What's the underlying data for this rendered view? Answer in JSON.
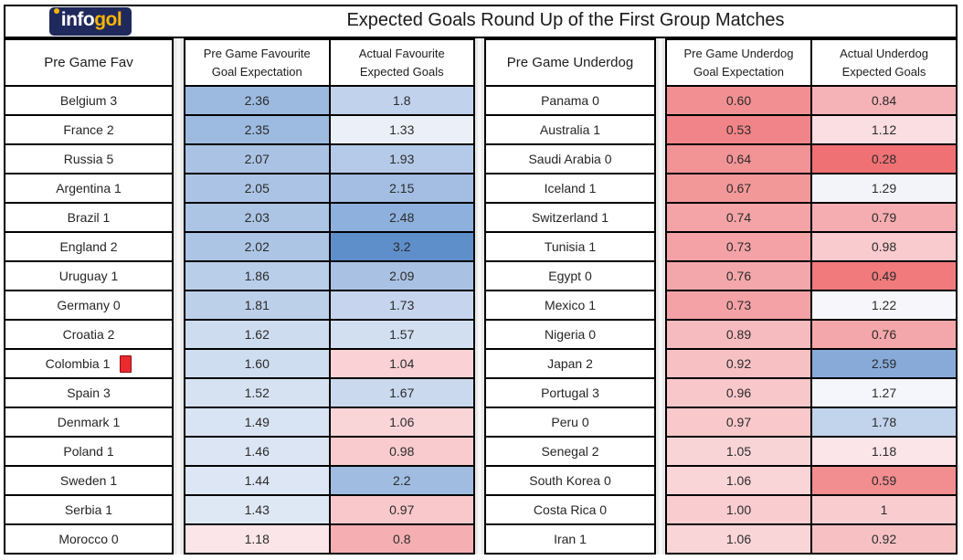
{
  "title": "Expected Goals Round Up of the First Group Matches",
  "logo": {
    "info": "info",
    "gol": "gol"
  },
  "headers": {
    "fav_team": "Pre Game Fav",
    "fav_pre_l1": "Pre Game Favourite",
    "fav_pre_l2": "Goal Expectation",
    "fav_xg_l1": "Actual Favourite",
    "fav_xg_l2": "Expected Goals",
    "dog_team": "Pre Game Underdog",
    "dog_pre_l1": "Pre Game Underdog",
    "dog_pre_l2": "Goal Expectation",
    "dog_xg_l1": "Actual Underdog",
    "dog_xg_l2": "Expected Goals"
  },
  "chart_data": {
    "type": "heatmap",
    "title": "Expected Goals Round Up of the First Group Matches",
    "columns": [
      "Pre Game Fav",
      "Pre Game Favourite Goal Expectation",
      "Actual Favourite Expected Goals",
      "Pre Game Underdog",
      "Pre Game Underdog Goal Expectation",
      "Actual Underdog Expected Goals"
    ],
    "color_scale": {
      "low_value": 0.28,
      "high_value": 3.2,
      "low_color": "#F8696B",
      "mid_color": "#FCFCFF",
      "high_color": "#5A8AC6"
    },
    "rows": [
      {
        "fav": "Belgium 3",
        "fav_pre": "2.36",
        "fav_pre_color": "#9CBAE0",
        "fav_xg": "1.8",
        "fav_xg_color": "#C1D2EC",
        "dog": "Panama 0",
        "dog_pre": "0.60",
        "dog_pre_color": "#F28F92",
        "dog_xg": "0.84",
        "dog_xg_color": "#F5B3B7",
        "fav_red_card": false
      },
      {
        "fav": "France 2",
        "fav_pre": "2.35",
        "fav_pre_color": "#9DBBE0",
        "fav_xg": "1.33",
        "fav_xg_color": "#EBF0F8",
        "dog": "Australia 1",
        "dog_pre": "0.53",
        "dog_pre_color": "#F18488",
        "dog_xg": "1.12",
        "dog_xg_color": "#FADEE1",
        "fav_red_card": false
      },
      {
        "fav": "Russia 5",
        "fav_pre": "2.07",
        "fav_pre_color": "#AAC3E4",
        "fav_xg": "1.93",
        "fav_xg_color": "#B5CAE8",
        "dog": "Saudi Arabia 0",
        "dog_pre": "0.64",
        "dog_pre_color": "#F29396",
        "dog_xg": "0.28",
        "dog_xg_color": "#F07173",
        "fav_red_card": false
      },
      {
        "fav": "Argentina 1",
        "fav_pre": "2.05",
        "fav_pre_color": "#ABC4E5",
        "fav_xg": "2.15",
        "fav_xg_color": "#A3BEE2",
        "dog": "Iceland 1",
        "dog_pre": "0.67",
        "dog_pre_color": "#F39899",
        "dog_xg": "1.29",
        "dog_xg_color": "#F2F4FA",
        "fav_red_card": false
      },
      {
        "fav": "Brazil 1",
        "fav_pre": "2.03",
        "fav_pre_color": "#ACC5E5",
        "fav_xg": "2.48",
        "fav_xg_color": "#8EB0DC",
        "dog": "Switzerland 1",
        "dog_pre": "0.74",
        "dog_pre_color": "#F4A4A7",
        "dog_xg": "0.79",
        "dog_xg_color": "#F5ADB1",
        "fav_red_card": false
      },
      {
        "fav": "England 2",
        "fav_pre": "2.02",
        "fav_pre_color": "#ADC5E5",
        "fav_xg": "3.2",
        "fav_xg_color": "#5E8FCB",
        "dog": "Tunisia 1",
        "dog_pre": "0.73",
        "dog_pre_color": "#F4A2A6",
        "dog_xg": "0.98",
        "dog_xg_color": "#F9CBCE",
        "fav_red_card": false
      },
      {
        "fav": "Uruguay 1",
        "fav_pre": "1.86",
        "fav_pre_color": "#B9CEE9",
        "fav_xg": "2.09",
        "fav_xg_color": "#A9C2E4",
        "dog": "Egypt 0",
        "dog_pre": "0.76",
        "dog_pre_color": "#F4A7AA",
        "dog_xg": "0.49",
        "dog_xg_color": "#F17A7D",
        "fav_red_card": false
      },
      {
        "fav": "Germany 0",
        "fav_pre": "1.81",
        "fav_pre_color": "#BDD0EA",
        "fav_xg": "1.73",
        "fav_xg_color": "#C6D5ED",
        "dog": "Mexico 1",
        "dog_pre": "0.73",
        "dog_pre_color": "#F4A2A6",
        "dog_xg": "1.22",
        "dog_xg_color": "#F7F7FB",
        "fav_red_card": false
      },
      {
        "fav": "Croatia 2",
        "fav_pre": "1.62",
        "fav_pre_color": "#CEDCF0",
        "fav_xg": "1.57",
        "fav_xg_color": "#D2DFF1",
        "dog": "Nigeria 0",
        "dog_pre": "0.89",
        "dog_pre_color": "#F6BBBE",
        "dog_xg": "0.76",
        "dog_xg_color": "#F4A7AA",
        "fav_red_card": false
      },
      {
        "fav": "Colombia 1",
        "fav_pre": "1.60",
        "fav_pre_color": "#CFDDF0",
        "fav_xg": "1.04",
        "fav_xg_color": "#FAD2D5",
        "dog": "Japan 2",
        "dog_pre": "0.92",
        "dog_pre_color": "#F7C1C4",
        "dog_xg": "2.59",
        "dog_xg_color": "#87AAD9",
        "fav_red_card": true
      },
      {
        "fav": "Spain 3",
        "fav_pre": "1.52",
        "fav_pre_color": "#D6E2F2",
        "fav_xg": "1.67",
        "fav_xg_color": "#CAD9EE",
        "dog": "Portugal 3",
        "dog_pre": "0.96",
        "dog_pre_color": "#F8C7CA",
        "dog_xg": "1.27",
        "dog_xg_color": "#F4F6FB",
        "fav_red_card": false
      },
      {
        "fav": "Denmark 1",
        "fav_pre": "1.49",
        "fav_pre_color": "#D8E3F3",
        "fav_xg": "1.06",
        "fav_xg_color": "#FAD5D8",
        "dog": "Peru 0",
        "dog_pre": "0.97",
        "dog_pre_color": "#F8C8CB",
        "dog_xg": "1.78",
        "dog_xg_color": "#C2D3EC",
        "fav_red_card": false
      },
      {
        "fav": "Poland 1",
        "fav_pre": "1.46",
        "fav_pre_color": "#DBE5F3",
        "fav_xg": "0.98",
        "fav_xg_color": "#F9CBCE",
        "dog": "Senegal 2",
        "dog_pre": "1.05",
        "dog_pre_color": "#F9D4D7",
        "dog_xg": "1.18",
        "dog_xg_color": "#FBE5E8",
        "fav_red_card": false
      },
      {
        "fav": "Sweden 1",
        "fav_pre": "1.44",
        "fav_pre_color": "#DDE6F4",
        "fav_xg": "2.2",
        "fav_xg_color": "#A0BCE1",
        "dog": "South Korea 0",
        "dog_pre": "1.06",
        "dog_pre_color": "#FAD5D8",
        "dog_xg": "0.59",
        "dog_xg_color": "#F28D90",
        "fav_red_card": false
      },
      {
        "fav": "Serbia 1",
        "fav_pre": "1.43",
        "fav_pre_color": "#DEE7F4",
        "fav_xg": "0.97",
        "fav_xg_color": "#F8C8CB",
        "dog": "Costa Rica 0",
        "dog_pre": "1.00",
        "dog_pre_color": "#F9CDD0",
        "dog_xg": "1",
        "dog_xg_color": "#F9CDD0",
        "fav_red_card": false
      },
      {
        "fav": "Morocco 0",
        "fav_pre": "1.18",
        "fav_pre_color": "#FBE5E8",
        "fav_xg": "0.8",
        "fav_xg_color": "#F5AFB3",
        "dog": "Iran 1",
        "dog_pre": "1.06",
        "dog_pre_color": "#FAD5D8",
        "dog_xg": "0.92",
        "dog_xg_color": "#F7C1C4",
        "fav_red_card": false
      }
    ]
  }
}
